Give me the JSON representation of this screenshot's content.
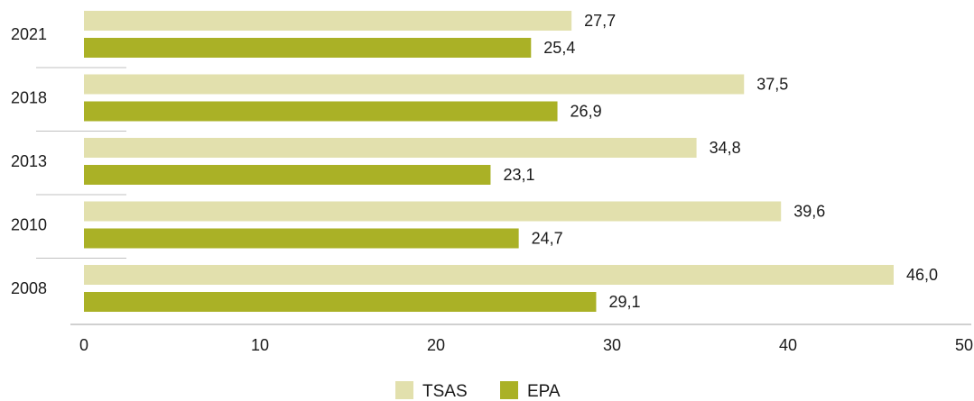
{
  "chart_data": {
    "type": "bar",
    "orientation": "horizontal",
    "categories": [
      "2021",
      "2018",
      "2013",
      "2010",
      "2008"
    ],
    "series": [
      {
        "name": "TSAS",
        "color": "#e2e0ad",
        "values": [
          27.7,
          37.5,
          34.8,
          39.6,
          46.0
        ],
        "labels": [
          "27,7",
          "37,5",
          "34,8",
          "39,6",
          "46,0"
        ]
      },
      {
        "name": "EPA",
        "color": "#aab126",
        "values": [
          25.4,
          26.9,
          23.1,
          24.7,
          29.1
        ],
        "labels": [
          "25,4",
          "26,9",
          "23,1",
          "24,7",
          "29,1"
        ]
      }
    ],
    "xlim": [
      0,
      50
    ],
    "xticks": [
      0,
      10,
      20,
      30,
      40,
      50
    ],
    "xticklabels": [
      "0",
      "10",
      "20",
      "30",
      "40",
      "50"
    ],
    "grid": false,
    "legend_position": "bottom-center",
    "axis_color": "#c0c0c0"
  }
}
